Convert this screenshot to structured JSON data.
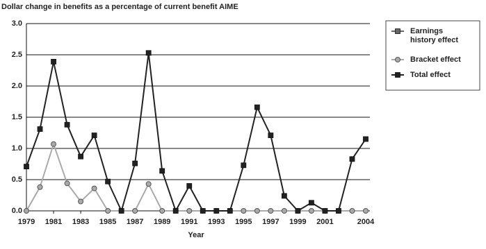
{
  "chart_data": {
    "type": "line",
    "title": "Dollar change in benefits as a percentage of current benefit AIME",
    "x_label": "Year",
    "x": [
      1979,
      1980,
      1981,
      1982,
      1983,
      1984,
      1985,
      1986,
      1987,
      1988,
      1989,
      1990,
      1991,
      1992,
      1993,
      1994,
      1995,
      1996,
      1997,
      1998,
      1999,
      2000,
      2001,
      2002,
      2003,
      2004
    ],
    "xlim": [
      1979,
      2004
    ],
    "xticks": [
      1979,
      1981,
      1983,
      1985,
      1987,
      1989,
      1991,
      1993,
      1995,
      1997,
      1999,
      2001,
      2004
    ],
    "ylim": [
      0,
      3
    ],
    "yticks": [
      {
        "value": 0,
        "label": "0.0"
      },
      0.5,
      {
        "value": 1,
        "label": "1.0"
      },
      1.5,
      {
        "value": 2,
        "label": "2.0"
      },
      2.5,
      {
        "value": 3,
        "label": "3.0"
      }
    ],
    "grid": true,
    "legend": "right",
    "series": [
      {
        "name": "Earnings history effect",
        "color": "#666666",
        "marker": "square"
      },
      {
        "name": "Bracket effect",
        "color": "#aaaaaa",
        "marker": "circle",
        "values": [
          0,
          0.38,
          1.07,
          0.44,
          0.15,
          0.36,
          0,
          0,
          0,
          0.43,
          0,
          0,
          0,
          0,
          0,
          0,
          0,
          0,
          0,
          0,
          0,
          0,
          0,
          0,
          0,
          0
        ]
      },
      {
        "name": "Total effect",
        "color": "#222222",
        "marker": "square",
        "values": [
          0.71,
          1.31,
          2.39,
          1.38,
          0.87,
          1.21,
          0.47,
          0,
          0.76,
          2.53,
          0.64,
          0,
          0.4,
          0,
          0,
          0,
          0.73,
          1.66,
          1.21,
          0.24,
          0,
          0.13,
          0,
          0,
          0.83,
          1.15
        ]
      }
    ]
  }
}
